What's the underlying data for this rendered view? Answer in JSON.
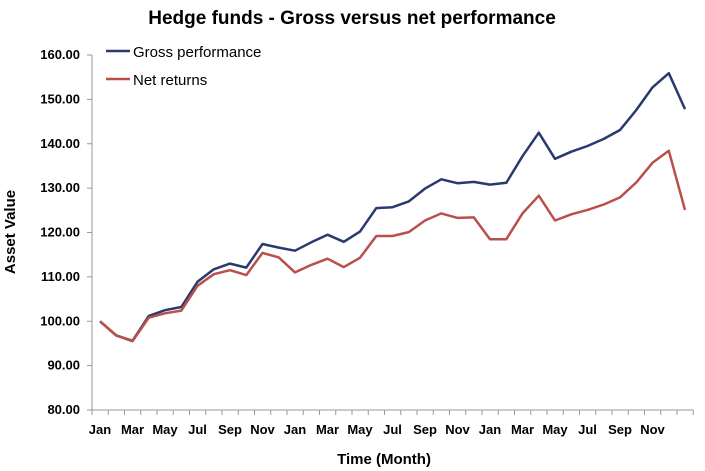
{
  "chart_data": {
    "type": "line",
    "title": "Hedge funds - Gross versus net performance",
    "xlabel": "Time (Month)",
    "ylabel": "Asset Value",
    "ylim": [
      80,
      160
    ],
    "yticks": [
      "80.00",
      "90.00",
      "100.00",
      "110.00",
      "120.00",
      "130.00",
      "140.00",
      "150.00",
      "160.00"
    ],
    "xtick_labels": [
      "Jan",
      "Mar",
      "May",
      "Jul",
      "Sep",
      "Nov",
      "Jan",
      "Mar",
      "May",
      "Jul",
      "Sep",
      "Nov",
      "Jan",
      "Mar",
      "May",
      "Jul",
      "Sep",
      "Nov"
    ],
    "grid": false,
    "legend": "top-left",
    "series": [
      {
        "name": "Gross performance",
        "color": "#2B3A6E",
        "values": [
          100,
          96.8,
          95.6,
          101.2,
          102.5,
          103.2,
          108.9,
          111.7,
          113.0,
          112.1,
          117.4,
          116.6,
          115.9,
          117.8,
          119.5,
          117.9,
          120.2,
          125.5,
          125.7,
          127.0,
          129.9,
          132.0,
          131.1,
          131.4,
          130.8,
          131.2,
          137.2,
          142.5,
          136.6,
          138.2,
          139.5,
          141.1,
          143.1,
          147.6,
          152.7,
          155.9,
          147.8
        ]
      },
      {
        "name": "Net returns",
        "color": "#B9504C",
        "values": [
          100,
          96.8,
          95.5,
          100.8,
          101.8,
          102.4,
          108.0,
          110.6,
          111.5,
          110.4,
          115.4,
          114.4,
          111.0,
          112.7,
          114.1,
          112.2,
          114.3,
          119.2,
          119.2,
          120.1,
          122.7,
          124.3,
          123.3,
          123.4,
          118.5,
          118.5,
          124.3,
          128.3,
          122.7,
          124.1,
          125.1,
          126.3,
          127.9,
          131.3,
          135.7,
          138.4,
          125.1
        ]
      }
    ]
  }
}
